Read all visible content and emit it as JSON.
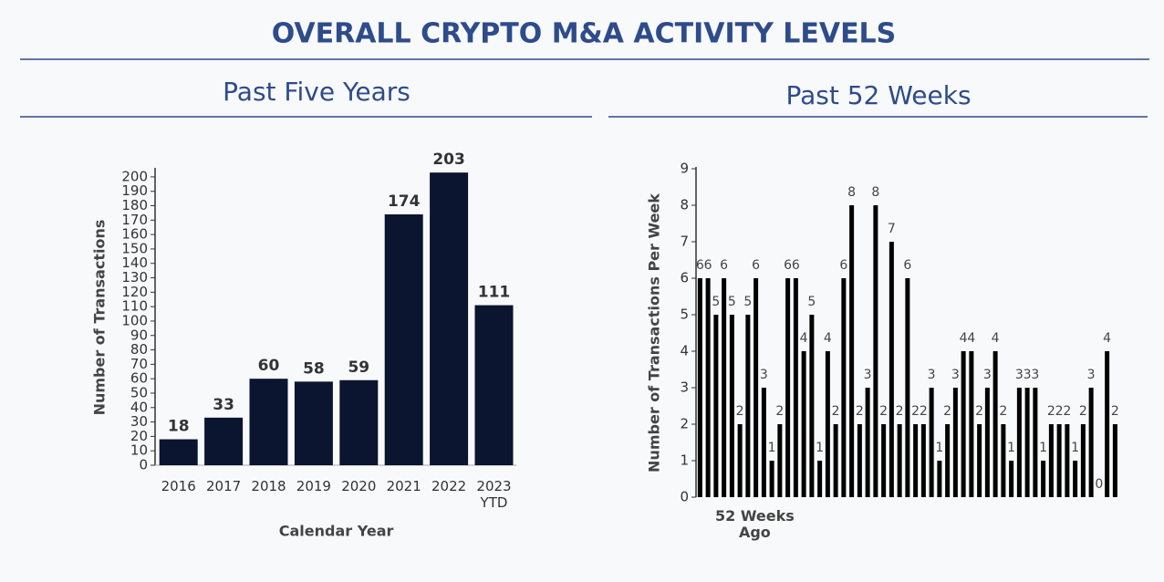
{
  "header": {
    "title": "OVERALL CRYPTO M&A ACTIVITY LEVELS"
  },
  "chart_data": [
    {
      "type": "bar",
      "title": "Past Five Years",
      "x_label": "Calendar Year",
      "y_label": "Number of Transactions",
      "categories": [
        "2016",
        "2017",
        "2018",
        "2019",
        "2020",
        "2021",
        "2022",
        "2023 YTD"
      ],
      "values": [
        18,
        33,
        60,
        58,
        59,
        174,
        203,
        111
      ],
      "color": "#0b1530",
      "ylim": [
        0,
        205
      ],
      "yticks": [
        0,
        10,
        20,
        30,
        40,
        50,
        60,
        70,
        80,
        90,
        100,
        110,
        120,
        130,
        140,
        150,
        160,
        170,
        180,
        190,
        200
      ]
    },
    {
      "type": "bar",
      "title": "Past 52 Weeks",
      "y_label": "Number of Transactions Per Week",
      "categories": [
        "52 Weeks Ago",
        null,
        null,
        null,
        null,
        null,
        null,
        null,
        null,
        null,
        null,
        null,
        null,
        null,
        null,
        null,
        null,
        null,
        null,
        null,
        null,
        null,
        null,
        null,
        null,
        null,
        null,
        null,
        null,
        null,
        null,
        null,
        null,
        null,
        null,
        null,
        null,
        null,
        null,
        null,
        null,
        null,
        null,
        null,
        null,
        null,
        null,
        null,
        null,
        null,
        null,
        null,
        null
      ],
      "values": [
        6,
        6,
        5,
        6,
        5,
        2,
        5,
        6,
        3,
        1,
        2,
        6,
        6,
        4,
        5,
        1,
        4,
        2,
        6,
        8,
        2,
        3,
        8,
        2,
        7,
        2,
        6,
        2,
        2,
        3,
        1,
        2,
        3,
        4,
        4,
        2,
        3,
        4,
        2,
        1,
        3,
        3,
        3,
        1,
        2,
        2,
        2,
        1,
        2,
        3,
        0,
        4,
        2
      ],
      "color": "#000000",
      "ylim": [
        0,
        9
      ],
      "yticks": [
        0,
        1,
        2,
        3,
        4,
        5,
        6,
        7,
        8,
        9
      ]
    }
  ]
}
